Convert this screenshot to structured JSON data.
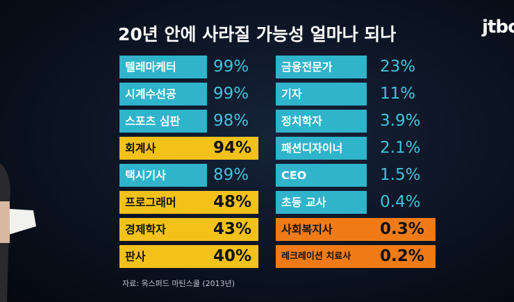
{
  "title": "20년 안에 사라질 가능성 얼마나 되나",
  "logo": "jtbc",
  "left_items": [
    {
      "label": "텔레마케터",
      "value": "99%",
      "color": "#2fb4cb"
    },
    {
      "label": "시계수선공",
      "value": "99%",
      "color": "#2fb4cb"
    },
    {
      "label": "스포츠 심판",
      "value": "98%",
      "color": "#2fb4cb"
    },
    {
      "label": "회계사",
      "value": "94%",
      "color": "#f2c21b"
    },
    {
      "label": "택시기사",
      "value": "89%",
      "color": "#2fb4cb"
    },
    {
      "label": "프로그래머",
      "value": "48%",
      "color": "#f2c21b"
    },
    {
      "label": "경제학자",
      "value": "43%",
      "color": "#f2c21b"
    },
    {
      "label": "판사",
      "value": "40%",
      "color": "#f2c21b"
    }
  ],
  "right_items": [
    {
      "label": "금융전문가",
      "value": "23%",
      "color": "#2fb4cb"
    },
    {
      "label": "기자",
      "value": "11%",
      "color": "#2fb4cb"
    },
    {
      "label": "정치학자",
      "value": "3.9%",
      "color": "#2fb4cb"
    },
    {
      "label": "패션디자이너",
      "value": "2.1%",
      "color": "#2fb4cb"
    },
    {
      "label": "CEO",
      "value": "1.5%",
      "color": "#2fb4cb"
    },
    {
      "label": "초등 교사",
      "value": "0.4%",
      "color": "#2fb4cb"
    },
    {
      "label": "사회복지사",
      "value": "0.3%",
      "color": "#f07b16"
    },
    {
      "label": "레크레이션 치료사",
      "value": "0.2%",
      "color": "#f07b16"
    }
  ],
  "source": "자료: 옥스퍼드 마틴스쿨 (2013년)"
}
